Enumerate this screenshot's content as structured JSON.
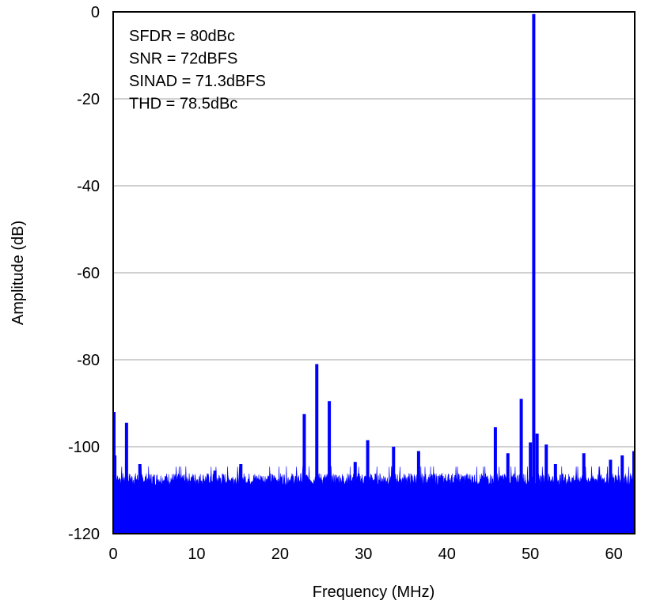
{
  "chart_data": {
    "type": "line",
    "title": "",
    "xlabel": "Frequency (MHz)",
    "ylabel": "Amplitude (dB)",
    "xlim": [
      0,
      62.5
    ],
    "ylim": [
      -120,
      0
    ],
    "x_ticks": [
      0,
      10,
      20,
      30,
      40,
      50,
      60
    ],
    "y_ticks": [
      0,
      -20,
      -40,
      -60,
      -80,
      -100,
      -120
    ],
    "grid": "horizontal",
    "series_color": "#0000ff",
    "grid_color": "#a0a0a0",
    "noise_floor": {
      "min_db": -109,
      "max_db": -106
    },
    "annotations": [
      "SFDR = 80dBc",
      "SNR = 72dBFS",
      "SINAD = 71.3dBFS",
      "THD = 78.5dBc"
    ],
    "series": [
      {
        "peaks": [
          {
            "x": 0.0,
            "y": -92
          },
          {
            "x": 0.2,
            "y": -102
          },
          {
            "x": 1.6,
            "y": -94.5
          },
          {
            "x": 3.2,
            "y": -104
          },
          {
            "x": 12.2,
            "y": -105.5
          },
          {
            "x": 15.3,
            "y": -104
          },
          {
            "x": 22.9,
            "y": -92.5
          },
          {
            "x": 24.4,
            "y": -81
          },
          {
            "x": 25.9,
            "y": -89.5
          },
          {
            "x": 29.0,
            "y": -103.5
          },
          {
            "x": 30.5,
            "y": -98.5
          },
          {
            "x": 33.6,
            "y": -100
          },
          {
            "x": 36.6,
            "y": -101
          },
          {
            "x": 45.8,
            "y": -95.5
          },
          {
            "x": 47.3,
            "y": -101.5
          },
          {
            "x": 48.9,
            "y": -89
          },
          {
            "x": 50.0,
            "y": -99
          },
          {
            "x": 50.4,
            "y": -0.5
          },
          {
            "x": 50.8,
            "y": -97
          },
          {
            "x": 51.9,
            "y": -99.5
          },
          {
            "x": 53.0,
            "y": -104
          },
          {
            "x": 56.4,
            "y": -101.5
          },
          {
            "x": 59.6,
            "y": -103
          },
          {
            "x": 61.0,
            "y": -102
          },
          {
            "x": 62.5,
            "y": -101
          }
        ]
      }
    ]
  }
}
